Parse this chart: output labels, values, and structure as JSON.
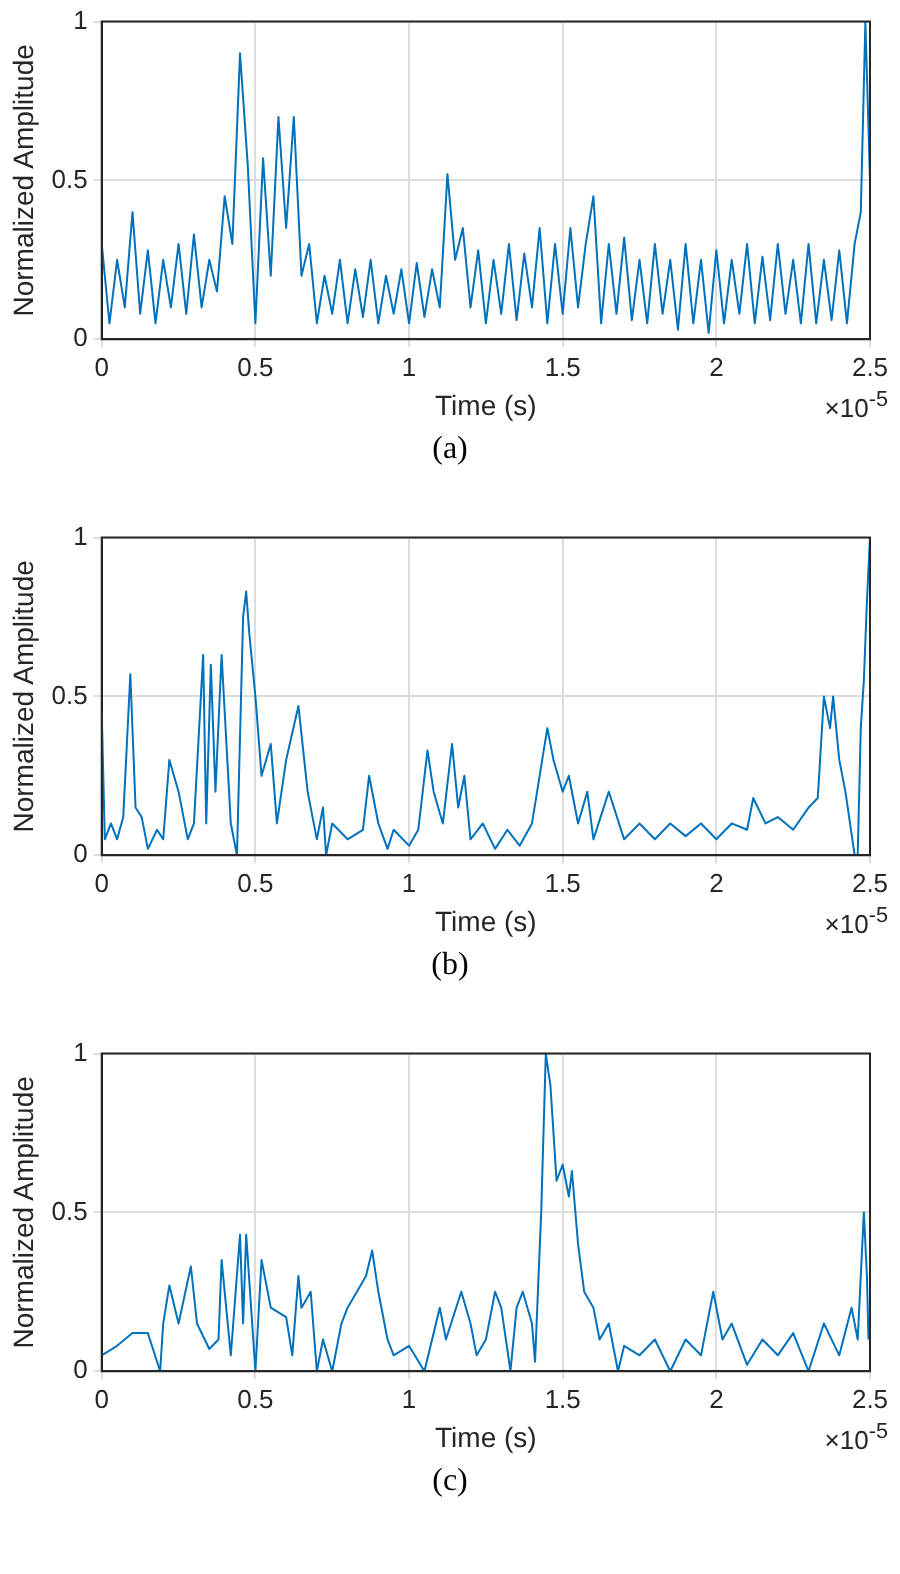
{
  "chart_data": [
    {
      "type": "line",
      "xlabel": "Time (s)",
      "ylabel": "Normalized Amplitude",
      "xlim": [
        0,
        2.5
      ],
      "xticks": [
        0,
        0.5,
        1,
        1.5,
        2,
        2.5
      ],
      "ylim": [
        0,
        1
      ],
      "yticks": [
        0,
        0.5,
        1
      ],
      "grid": true,
      "legend": false,
      "marker": "none",
      "line_style": "solid",
      "annotations": [
        "×10$^{-5}$",
        "(a)"
      ],
      "x": [
        0,
        0.025,
        0.05,
        0.075,
        0.1,
        0.125,
        0.15,
        0.175,
        0.2,
        0.225,
        0.25,
        0.275,
        0.3,
        0.325,
        0.35,
        0.375,
        0.4,
        0.425,
        0.45,
        0.475,
        0.5,
        0.525,
        0.55,
        0.575,
        0.6,
        0.625,
        0.65,
        0.675,
        0.7,
        0.725,
        0.75,
        0.775,
        0.8,
        0.825,
        0.85,
        0.875,
        0.9,
        0.925,
        0.95,
        0.975,
        1,
        1.025,
        1.05,
        1.075,
        1.1,
        1.125,
        1.15,
        1.175,
        1.2,
        1.225,
        1.25,
        1.275,
        1.3,
        1.325,
        1.35,
        1.375,
        1.4,
        1.425,
        1.45,
        1.475,
        1.5,
        1.525,
        1.55,
        1.575,
        1.6,
        1.625,
        1.65,
        1.675,
        1.7,
        1.725,
        1.75,
        1.775,
        1.8,
        1.825,
        1.85,
        1.875,
        1.9,
        1.925,
        1.95,
        1.975,
        2,
        2.025,
        2.05,
        2.075,
        2.1,
        2.125,
        2.15,
        2.175,
        2.2,
        2.225,
        2.25,
        2.275,
        2.3,
        2.325,
        2.35,
        2.375,
        2.4,
        2.425,
        2.45,
        2.47,
        2.485,
        2.5
      ],
      "series": [
        {
          "color": "#0072bd",
          "values": [
            0.3,
            0.05,
            0.25,
            0.1,
            0.4,
            0.08,
            0.28,
            0.05,
            0.25,
            0.1,
            0.3,
            0.08,
            0.33,
            0.1,
            0.25,
            0.15,
            0.45,
            0.3,
            0.9,
            0.55,
            0.05,
            0.57,
            0.2,
            0.7,
            0.35,
            0.7,
            0.2,
            0.3,
            0.05,
            0.2,
            0.08,
            0.25,
            0.05,
            0.22,
            0.07,
            0.25,
            0.05,
            0.2,
            0.08,
            0.22,
            0.05,
            0.24,
            0.07,
            0.22,
            0.1,
            0.52,
            0.25,
            0.35,
            0.1,
            0.28,
            0.05,
            0.25,
            0.08,
            0.3,
            0.06,
            0.27,
            0.1,
            0.35,
            0.05,
            0.3,
            0.08,
            0.35,
            0.1,
            0.3,
            0.45,
            0.05,
            0.3,
            0.08,
            0.32,
            0.06,
            0.25,
            0.05,
            0.3,
            0.08,
            0.25,
            0.03,
            0.3,
            0.05,
            0.25,
            0.02,
            0.28,
            0.05,
            0.25,
            0.08,
            0.3,
            0.05,
            0.26,
            0.06,
            0.3,
            0.08,
            0.25,
            0.05,
            0.3,
            0.05,
            0.25,
            0.06,
            0.28,
            0.05,
            0.3,
            0.4,
            1,
            0.5
          ]
        }
      ]
    },
    {
      "type": "line",
      "xlabel": "Time (s)",
      "ylabel": "Normalized Amplitude",
      "xlim": [
        0,
        2.5
      ],
      "xticks": [
        0,
        0.5,
        1,
        1.5,
        2,
        2.5
      ],
      "ylim": [
        0,
        1
      ],
      "yticks": [
        0,
        0.5,
        1
      ],
      "grid": true,
      "legend": false,
      "marker": "none",
      "line_style": "solid",
      "annotations": [
        "×10$^{-5}$",
        "(b)"
      ],
      "x": [
        0,
        0.01,
        0.03,
        0.05,
        0.07,
        0.093,
        0.11,
        0.13,
        0.15,
        0.18,
        0.2,
        0.22,
        0.25,
        0.28,
        0.3,
        0.33,
        0.34,
        0.355,
        0.37,
        0.39,
        0.42,
        0.44,
        0.46,
        0.47,
        0.48,
        0.5,
        0.52,
        0.55,
        0.57,
        0.6,
        0.64,
        0.67,
        0.7,
        0.72,
        0.73,
        0.75,
        0.8,
        0.85,
        0.87,
        0.9,
        0.93,
        0.95,
        1,
        1.03,
        1.06,
        1.08,
        1.11,
        1.14,
        1.16,
        1.18,
        1.2,
        1.24,
        1.28,
        1.32,
        1.36,
        1.4,
        1.45,
        1.47,
        1.5,
        1.52,
        1.55,
        1.58,
        1.6,
        1.65,
        1.7,
        1.75,
        1.8,
        1.85,
        1.9,
        1.95,
        2,
        2.05,
        2.1,
        2.12,
        2.16,
        2.2,
        2.25,
        2.3,
        2.33,
        2.35,
        2.37,
        2.38,
        2.4,
        2.42,
        2.45,
        2.46,
        2.47,
        2.48,
        2.49,
        2.5
      ],
      "series": [
        {
          "color": "#0072bd",
          "values": [
            0.45,
            0.05,
            0.1,
            0.05,
            0.12,
            0.57,
            0.15,
            0.12,
            0.02,
            0.08,
            0.05,
            0.3,
            0.2,
            0.05,
            0.1,
            0.63,
            0.1,
            0.6,
            0.2,
            0.63,
            0.1,
            0,
            0.75,
            0.83,
            0.7,
            0.5,
            0.25,
            0.35,
            0.1,
            0.3,
            0.47,
            0.2,
            0.05,
            0.15,
            0,
            0.1,
            0.05,
            0.08,
            0.25,
            0.1,
            0.02,
            0.08,
            0.03,
            0.08,
            0.33,
            0.2,
            0.1,
            0.35,
            0.15,
            0.25,
            0.05,
            0.1,
            0.02,
            0.08,
            0.03,
            0.1,
            0.4,
            0.3,
            0.2,
            0.25,
            0.1,
            0.2,
            0.05,
            0.2,
            0.05,
            0.1,
            0.05,
            0.1,
            0.06,
            0.1,
            0.05,
            0.1,
            0.08,
            0.18,
            0.1,
            0.12,
            0.08,
            0.15,
            0.18,
            0.5,
            0.4,
            0.5,
            0.3,
            0.2,
            0,
            0,
            0.4,
            0.55,
            0.8,
            1
          ]
        }
      ]
    },
    {
      "type": "line",
      "xlabel": "Time (s)",
      "ylabel": "Normalized Amplitude",
      "xlim": [
        0,
        2.5
      ],
      "xticks": [
        0,
        0.5,
        1,
        1.5,
        2,
        2.5
      ],
      "ylim": [
        0,
        1
      ],
      "yticks": [
        0,
        0.5,
        1
      ],
      "grid": true,
      "legend": false,
      "marker": "none",
      "line_style": "solid",
      "annotations": [
        "×10$^{-5}$",
        "(c)"
      ],
      "x": [
        0,
        0.05,
        0.1,
        0.15,
        0.19,
        0.2,
        0.22,
        0.25,
        0.29,
        0.31,
        0.35,
        0.38,
        0.39,
        0.42,
        0.45,
        0.46,
        0.47,
        0.5,
        0.52,
        0.55,
        0.6,
        0.62,
        0.64,
        0.65,
        0.68,
        0.7,
        0.72,
        0.75,
        0.78,
        0.8,
        0.86,
        0.88,
        0.9,
        0.93,
        0.95,
        1,
        1.05,
        1.1,
        1.12,
        1.17,
        1.2,
        1.22,
        1.25,
        1.28,
        1.3,
        1.33,
        1.35,
        1.37,
        1.4,
        1.41,
        1.43,
        1.445,
        1.46,
        1.48,
        1.5,
        1.52,
        1.53,
        1.55,
        1.57,
        1.6,
        1.62,
        1.65,
        1.68,
        1.7,
        1.75,
        1.8,
        1.85,
        1.9,
        1.95,
        1.99,
        2.02,
        2.05,
        2.1,
        2.15,
        2.2,
        2.25,
        2.3,
        2.35,
        2.4,
        2.44,
        2.46,
        2.48,
        2.49,
        2.495
      ],
      "series": [
        {
          "color": "#0072bd",
          "values": [
            0.05,
            0.08,
            0.12,
            0.12,
            0,
            0.15,
            0.27,
            0.15,
            0.33,
            0.15,
            0.07,
            0.1,
            0.35,
            0.05,
            0.43,
            0.15,
            0.43,
            0,
            0.35,
            0.2,
            0.17,
            0.05,
            0.3,
            0.2,
            0.25,
            0,
            0.1,
            0,
            0.15,
            0.2,
            0.3,
            0.38,
            0.25,
            0.1,
            0.05,
            0.08,
            0,
            0.2,
            0.1,
            0.25,
            0.15,
            0.05,
            0.1,
            0.25,
            0.2,
            0,
            0.2,
            0.25,
            0.15,
            0.03,
            0.5,
            1,
            0.9,
            0.6,
            0.65,
            0.55,
            0.63,
            0.4,
            0.25,
            0.2,
            0.1,
            0.15,
            0,
            0.08,
            0.05,
            0.1,
            0,
            0.1,
            0.05,
            0.25,
            0.1,
            0.15,
            0.02,
            0.1,
            0.05,
            0.12,
            0,
            0.15,
            0.05,
            0.2,
            0.1,
            0.5,
            0.3,
            0.1
          ]
        }
      ]
    }
  ]
}
